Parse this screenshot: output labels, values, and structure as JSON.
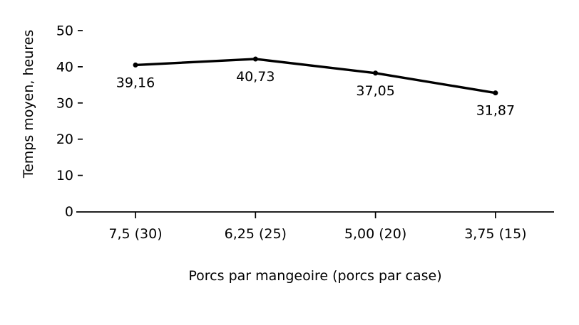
{
  "chart_data": {
    "type": "line",
    "title": "",
    "xlabel": "Porcs par mangeoire (porcs par case)",
    "ylabel": "Temps moyen, heures",
    "categories": [
      "7,5 (30)",
      "6,25 (25)",
      "5,00 (20)",
      "3,75 (15)"
    ],
    "values": [
      39.16,
      40.73,
      37.05,
      31.87
    ],
    "point_labels": [
      "39,16",
      "40,73",
      "37,05",
      "31,87"
    ],
    "yticks": [
      0,
      10,
      20,
      30,
      40,
      50
    ],
    "ylim": [
      0,
      50
    ],
    "grid": false,
    "legend": "none",
    "marker": "circle",
    "line_color": "#000000",
    "axis_color": "#000000",
    "text_color": "#000000",
    "background_color": "#ffffff"
  }
}
